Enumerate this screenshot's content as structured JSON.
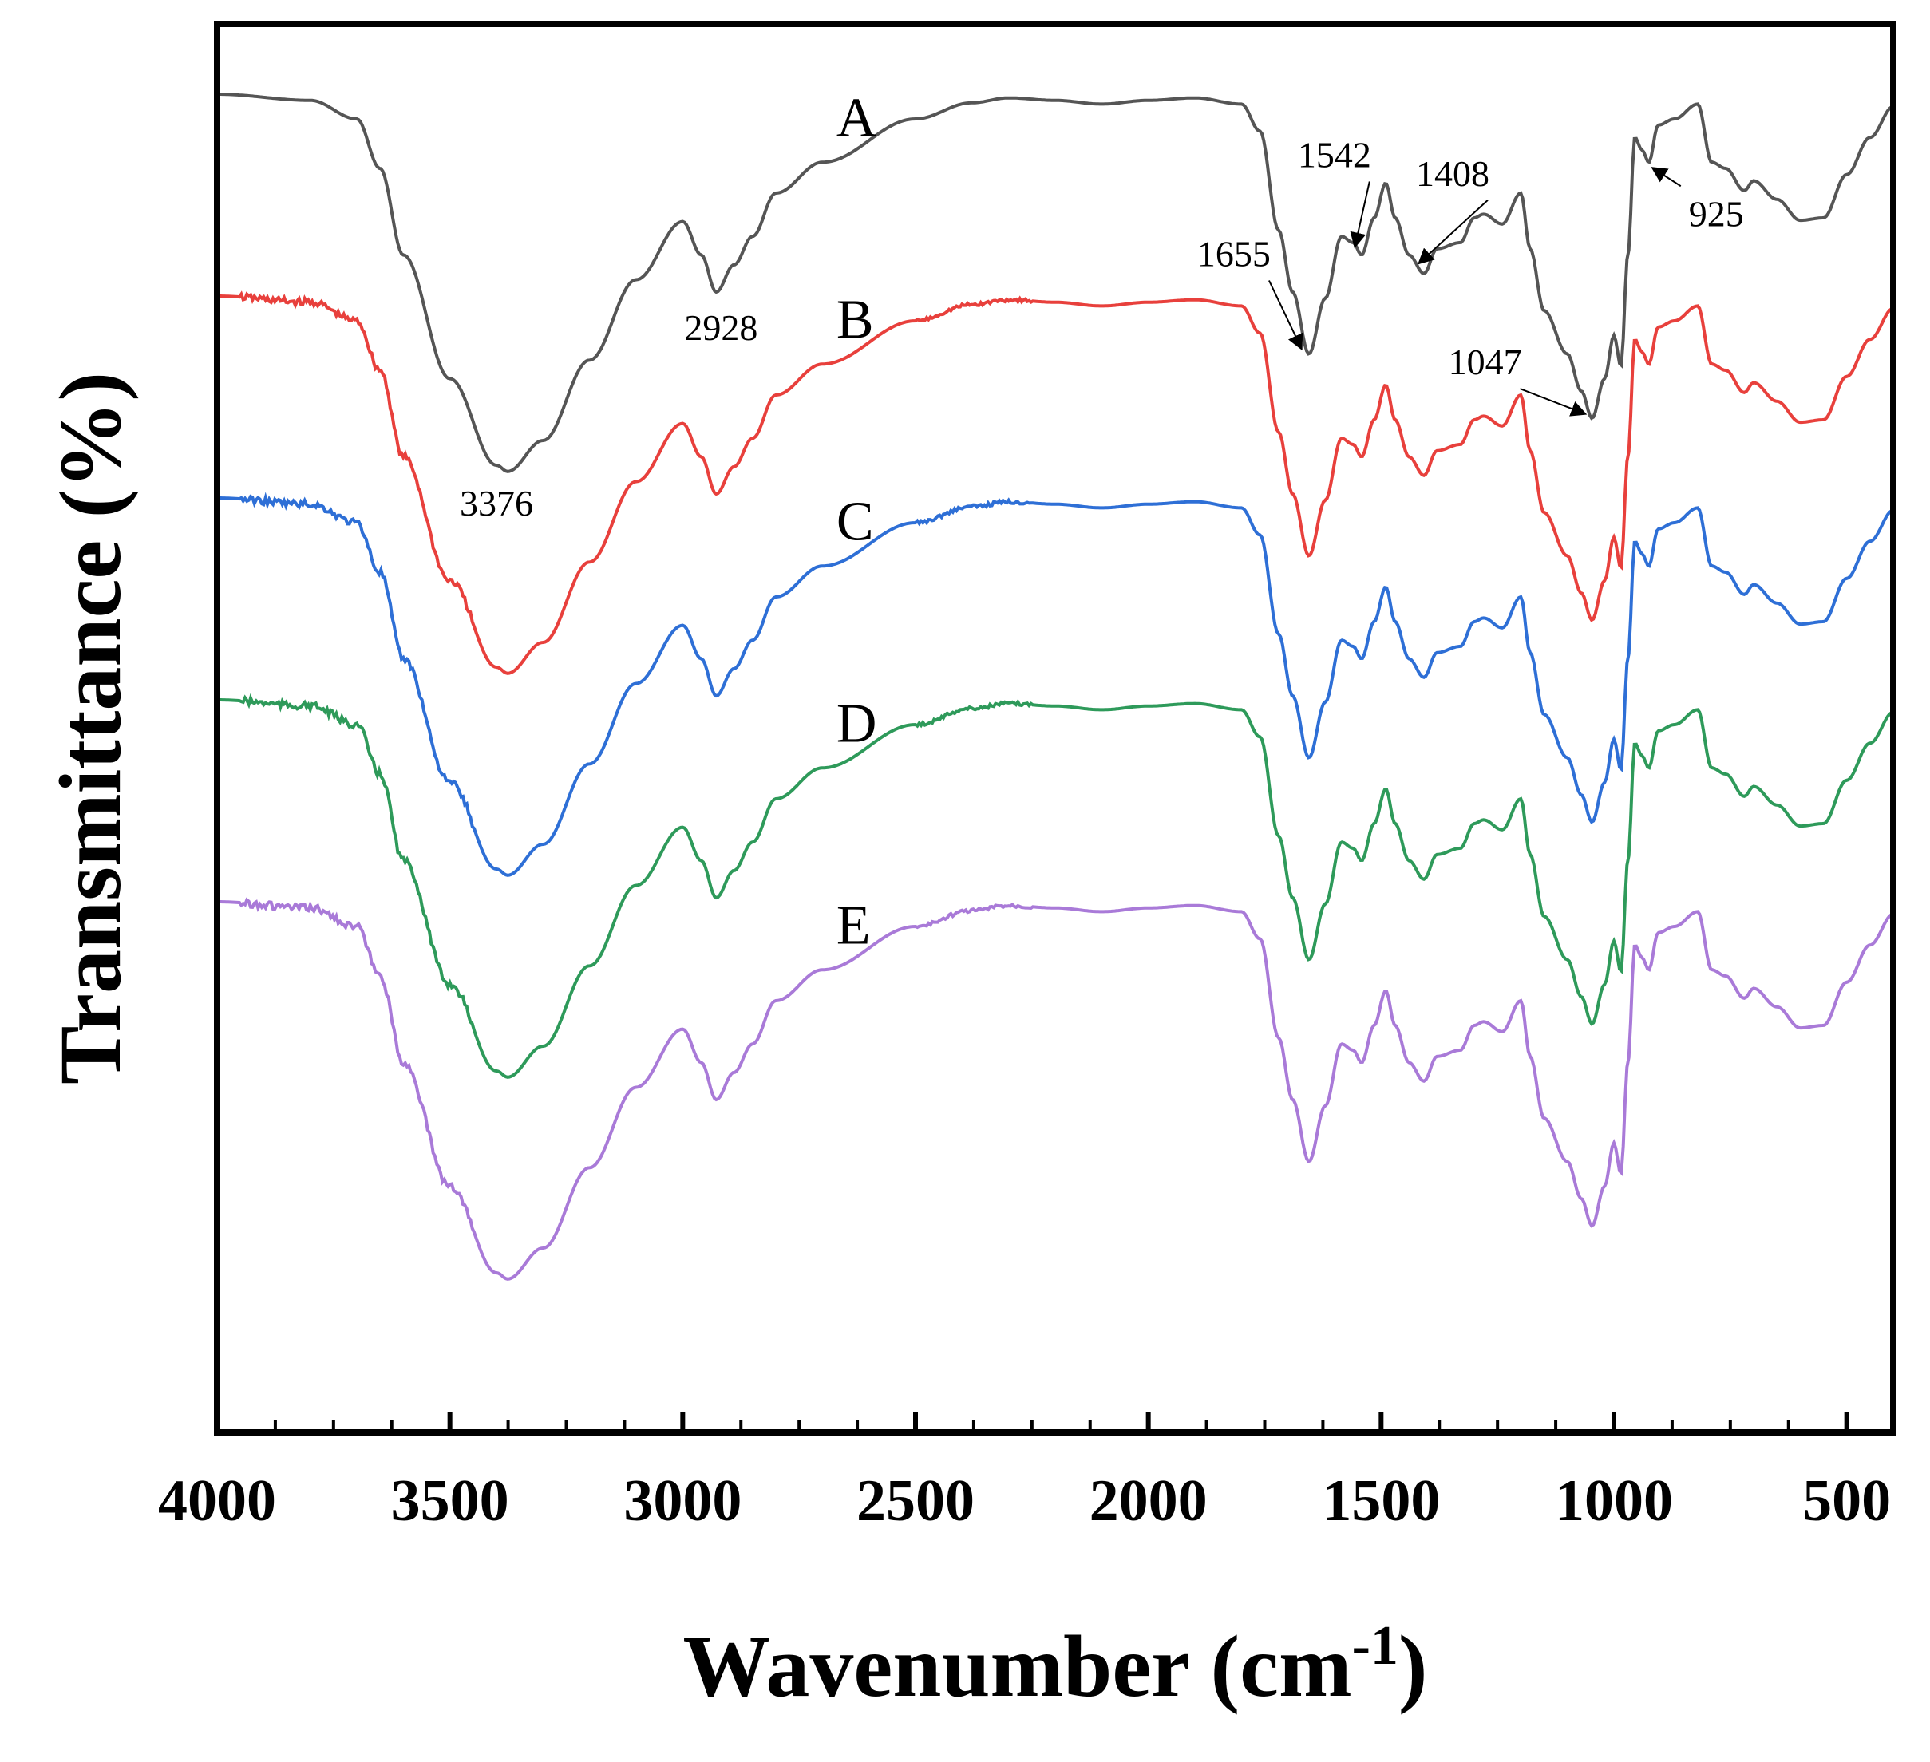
{
  "chart_data": {
    "type": "line",
    "xlabel": "Wavenumber (cm",
    "xlabel_sup": "-1",
    "xlabel_close": ")",
    "ylabel": "Transmittance (%)",
    "xlim": [
      4000,
      400
    ],
    "x_reversed": true,
    "x_ticks": [
      4000,
      3500,
      3000,
      2500,
      2000,
      1500,
      1000,
      500
    ],
    "y_ticks_shown": false,
    "grid": false,
    "series": [
      {
        "name": "A",
        "color": "#555555",
        "offset": 0,
        "label_x": 2670
      },
      {
        "name": "B",
        "color": "#e8403c",
        "offset": 1,
        "label_x": 2670
      },
      {
        "name": "C",
        "color": "#2e6fd6",
        "offset": 2,
        "label_x": 2670
      },
      {
        "name": "D",
        "color": "#2e9a5a",
        "offset": 3,
        "label_x": 2670
      },
      {
        "name": "E",
        "color": "#a97ad8",
        "offset": 4,
        "label_x": 2670
      }
    ],
    "profile": [
      [
        4000,
        0
      ],
      [
        3800,
        5
      ],
      [
        3700,
        20
      ],
      [
        3650,
        60
      ],
      [
        3600,
        130
      ],
      [
        3500,
        230
      ],
      [
        3400,
        300
      ],
      [
        3376,
        305
      ],
      [
        3300,
        280
      ],
      [
        3200,
        215
      ],
      [
        3100,
        150
      ],
      [
        3000,
        103
      ],
      [
        2960,
        130
      ],
      [
        2928,
        160
      ],
      [
        2890,
        138
      ],
      [
        2850,
        115
      ],
      [
        2800,
        80
      ],
      [
        2700,
        55
      ],
      [
        2500,
        20
      ],
      [
        2380,
        7
      ],
      [
        2300,
        3
      ],
      [
        2200,
        5
      ],
      [
        2100,
        8
      ],
      [
        2000,
        5
      ],
      [
        1900,
        3
      ],
      [
        1800,
        8
      ],
      [
        1760,
        30
      ],
      [
        1720,
        110
      ],
      [
        1690,
        160
      ],
      [
        1655,
        210
      ],
      [
        1620,
        165
      ],
      [
        1585,
        115
      ],
      [
        1560,
        120
      ],
      [
        1542,
        130
      ],
      [
        1515,
        100
      ],
      [
        1490,
        72
      ],
      [
        1470,
        100
      ],
      [
        1440,
        130
      ],
      [
        1408,
        145
      ],
      [
        1380,
        125
      ],
      [
        1330,
        120
      ],
      [
        1300,
        100
      ],
      [
        1280,
        97
      ],
      [
        1240,
        105
      ],
      [
        1200,
        80
      ],
      [
        1180,
        125
      ],
      [
        1150,
        175
      ],
      [
        1100,
        210
      ],
      [
        1070,
        240
      ],
      [
        1047,
        262
      ],
      [
        1020,
        230
      ],
      [
        1000,
        195
      ],
      [
        985,
        220
      ],
      [
        970,
        130
      ],
      [
        955,
        35
      ],
      [
        940,
        45
      ],
      [
        925,
        55
      ],
      [
        905,
        25
      ],
      [
        870,
        20
      ],
      [
        820,
        8
      ],
      [
        790,
        55
      ],
      [
        760,
        60
      ],
      [
        720,
        78
      ],
      [
        700,
        70
      ],
      [
        650,
        85
      ],
      [
        600,
        102
      ],
      [
        550,
        100
      ],
      [
        500,
        65
      ],
      [
        450,
        35
      ],
      [
        400,
        10
      ]
    ],
    "annotations": [
      {
        "text": "3376",
        "x": 3376,
        "series": "A",
        "arrow": false
      },
      {
        "text": "2928",
        "x": 2928,
        "series": "A",
        "arrow": false
      },
      {
        "text": "1655",
        "x": 1655,
        "series": "A",
        "arrow": true
      },
      {
        "text": "1542",
        "x": 1542,
        "series": "A",
        "arrow": true
      },
      {
        "text": "1408",
        "x": 1408,
        "series": "A",
        "arrow": true
      },
      {
        "text": "1047",
        "x": 1047,
        "series": "A",
        "arrow": true
      },
      {
        "text": "925",
        "x": 925,
        "series": "A",
        "arrow": true
      }
    ]
  }
}
